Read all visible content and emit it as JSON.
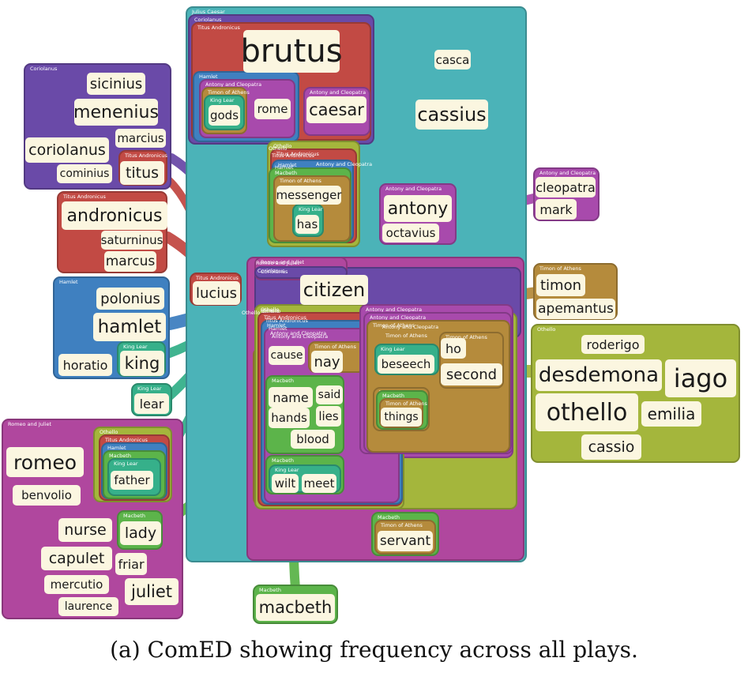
{
  "caption": "(a) ComED showing frequency across all plays.",
  "colors": {
    "julius_caesar": "#4bb3b8",
    "coriolanus": "#6a4aa8",
    "titus_andronicus": "#c24a44",
    "antony_and_cleopatra": "#a84aac",
    "romeo_and_juliet": "#b0479e",
    "hamlet": "#3f80c0",
    "king_lear": "#36b08a",
    "timon_of_athens": "#b58b3c",
    "macbeth": "#5cb44a",
    "othello": "#a4b63c",
    "word_fill": "#fbf6e0"
  },
  "groups": [
    {
      "id": "julius_caesar",
      "label": "Julius Caesar",
      "color": "#4bb3b8"
    },
    {
      "id": "rj_big",
      "label": "",
      "color": "#b0479e"
    },
    {
      "id": "cor_big",
      "label": "",
      "color": "#6a4aa8"
    },
    {
      "id": "oth_big",
      "label": "",
      "color": "#a4b63c"
    },
    {
      "id": "ac_big",
      "label": "Antony and Cleopatra",
      "color": "#a84aac"
    },
    {
      "id": "timon_mid",
      "label": "Timon of Athens",
      "color": "#b58b3c"
    },
    {
      "id": "coriolanus_jc",
      "label": "Coriolanus",
      "color": "#6a4aa8"
    },
    {
      "id": "titus_jc",
      "label": "Titus Andronicus",
      "color": "#c24a44"
    },
    {
      "id": "hamlet_jc",
      "label": "Hamlet",
      "color": "#3f80c0"
    },
    {
      "id": "ac_jc",
      "label": "Antony and Cleopatra",
      "color": "#a84aac"
    },
    {
      "id": "timon_jc",
      "label": "Timon of Athens",
      "color": "#b58b3c"
    },
    {
      "id": "lear_jc",
      "label": "King Lear",
      "color": "#36b08a"
    },
    {
      "id": "ac_caesar",
      "label": "Antony and Cleopatra",
      "color": "#a84aac"
    },
    {
      "id": "oth_m",
      "label": "Othello",
      "color": "#a4b63c"
    },
    {
      "id": "titus_m",
      "label": "Titus Andronicus",
      "color": "#c24a44"
    },
    {
      "id": "hamlet_m",
      "label": "Hamlet",
      "color": "#3f80c0"
    },
    {
      "id": "macbeth_m",
      "label": "Macbeth",
      "color": "#5cb44a"
    },
    {
      "id": "timon_m",
      "label": "Timon of Athens",
      "color": "#b58b3c"
    },
    {
      "id": "lear_has",
      "label": "King Lear",
      "color": "#36b08a"
    },
    {
      "id": "ac_antony",
      "label": "Antony and Cleopatra",
      "color": "#a84aac"
    },
    {
      "id": "coriolanus",
      "label": "Coriolanus",
      "color": "#6a4aa8"
    },
    {
      "id": "titus",
      "label": "Titus Andronicus",
      "color": "#c24a44"
    },
    {
      "id": "titus_andronicus",
      "label": "Titus Andronicus",
      "color": "#c24a44"
    },
    {
      "id": "hamlet",
      "label": "Hamlet",
      "color": "#3f80c0"
    },
    {
      "id": "lear_king",
      "label": "King Lear",
      "color": "#36b08a"
    },
    {
      "id": "lear_lear",
      "label": "King Lear",
      "color": "#36b08a"
    },
    {
      "id": "rj_cor",
      "label": "Romeo and Juliet",
      "color": "#b0479e"
    },
    {
      "id": "cor_small",
      "label": "Coriolanus",
      "color": "#6a4aa8"
    },
    {
      "id": "titus_lucius",
      "label": "Titus Andronicus",
      "color": "#c24a44"
    },
    {
      "id": "ac_cleopatra",
      "label": "Antony and Cleopatra",
      "color": "#a84aac"
    },
    {
      "id": "timon_timon",
      "label": "Timon of Athens",
      "color": "#b58b3c"
    },
    {
      "id": "othello",
      "label": "Othello",
      "color": "#a4b63c"
    },
    {
      "id": "romeo_and_juliet",
      "label": "Romeo and Juliet",
      "color": "#b0479e"
    },
    {
      "id": "oth_rj",
      "label": "Othello",
      "color": "#a4b63c"
    },
    {
      "id": "titus_rj",
      "label": "Titus Andronicus",
      "color": "#c24a44"
    },
    {
      "id": "hamlet_rj",
      "label": "Hamlet",
      "color": "#3f80c0"
    },
    {
      "id": "macbeth_rj",
      "label": "Macbeth",
      "color": "#5cb44a"
    },
    {
      "id": "lear_father",
      "label": "King Lear",
      "color": "#36b08a"
    },
    {
      "id": "macbeth_lady",
      "label": "Macbeth",
      "color": "#5cb44a"
    },
    {
      "id": "macbeth_macbeth",
      "label": "Macbeth",
      "color": "#5cb44a"
    },
    {
      "id": "oth_center",
      "label": "Othello",
      "color": "#a4b63c"
    },
    {
      "id": "titus_center",
      "label": "Titus Andronicus",
      "color": "#c24a44"
    },
    {
      "id": "hamlet_center",
      "label": "Hamlet",
      "color": "#3f80c0"
    },
    {
      "id": "ac_center",
      "label": "Antony and Cleopatra",
      "color": "#a84aac"
    },
    {
      "id": "timon_nay",
      "label": "Timon of Athens",
      "color": "#b58b3c"
    },
    {
      "id": "macbeth_name",
      "label": "Macbeth",
      "color": "#5cb44a"
    },
    {
      "id": "macbeth_wilt",
      "label": "Macbeth",
      "color": "#5cb44a"
    },
    {
      "id": "lear_wilt",
      "label": "King Lear",
      "color": "#36b08a"
    },
    {
      "id": "ac_right",
      "label": "Antony and Cleopatra",
      "color": "#a84aac"
    },
    {
      "id": "ac_right2",
      "label": "Antony and Cleopatra",
      "color": "#a84aac"
    },
    {
      "id": "timon_right",
      "label": "Timon of Athens",
      "color": "#b58b3c"
    },
    {
      "id": "timon_ho",
      "label": "Timon of Athens",
      "color": "#b58b3c"
    },
    {
      "id": "lear_beseech",
      "label": "King Lear",
      "color": "#36b08a"
    },
    {
      "id": "timon_things_outer",
      "label": "Timon of Athens",
      "color": "#b58b3c"
    },
    {
      "id": "macbeth_things",
      "label": "Macbeth",
      "color": "#5cb44a"
    },
    {
      "id": "timon_things",
      "label": "Timon of Athens",
      "color": "#b58b3c"
    },
    {
      "id": "macbeth_servant",
      "label": "Macbeth",
      "color": "#5cb44a"
    },
    {
      "id": "timon_servant",
      "label": "Timon of Athens",
      "color": "#b58b3c"
    }
  ],
  "words": [
    {
      "text": "brutus",
      "group": "titus_jc"
    },
    {
      "text": "casca",
      "group": "julius_caesar"
    },
    {
      "text": "cassius",
      "group": "julius_caesar"
    },
    {
      "text": "gods",
      "group": "lear_jc"
    },
    {
      "text": "rome",
      "group": "ac_jc"
    },
    {
      "text": "caesar",
      "group": "ac_caesar"
    },
    {
      "text": "messenger",
      "group": "timon_m"
    },
    {
      "text": "has",
      "group": "lear_has"
    },
    {
      "text": "antony",
      "group": "ac_antony"
    },
    {
      "text": "octavius",
      "group": "ac_antony"
    },
    {
      "text": "sicinius",
      "group": "coriolanus"
    },
    {
      "text": "menenius",
      "group": "coriolanus"
    },
    {
      "text": "marcius",
      "group": "coriolanus"
    },
    {
      "text": "coriolanus",
      "group": "coriolanus"
    },
    {
      "text": "cominius",
      "group": "coriolanus"
    },
    {
      "text": "titus",
      "group": "titus"
    },
    {
      "text": "andronicus",
      "group": "titus_andronicus"
    },
    {
      "text": "saturninus",
      "group": "titus_andronicus"
    },
    {
      "text": "marcus",
      "group": "titus_andronicus"
    },
    {
      "text": "cleopatra",
      "group": "ac_cleopatra"
    },
    {
      "text": "mark",
      "group": "ac_cleopatra"
    },
    {
      "text": "lucius",
      "group": "titus_lucius"
    },
    {
      "text": "citizen",
      "group": "cor_small"
    },
    {
      "text": "timon",
      "group": "timon_timon"
    },
    {
      "text": "apemantus",
      "group": "timon_timon"
    },
    {
      "text": "polonius",
      "group": "hamlet"
    },
    {
      "text": "hamlet",
      "group": "hamlet"
    },
    {
      "text": "horatio",
      "group": "hamlet"
    },
    {
      "text": "king",
      "group": "lear_king"
    },
    {
      "text": "lear",
      "group": "lear_lear"
    },
    {
      "text": "cause",
      "group": "hamlet_center"
    },
    {
      "text": "nay",
      "group": "timon_nay"
    },
    {
      "text": "beseech",
      "group": "lear_beseech"
    },
    {
      "text": "ho",
      "group": "timon_ho"
    },
    {
      "text": "second",
      "group": "timon_ho"
    },
    {
      "text": "roderigo",
      "group": "othello"
    },
    {
      "text": "desdemona",
      "group": "othello"
    },
    {
      "text": "iago",
      "group": "othello"
    },
    {
      "text": "othello",
      "group": "othello"
    },
    {
      "text": "emilia",
      "group": "othello"
    },
    {
      "text": "cassio",
      "group": "othello"
    },
    {
      "text": "name",
      "group": "macbeth_name"
    },
    {
      "text": "said",
      "group": "macbeth_name"
    },
    {
      "text": "hands",
      "group": "macbeth_name"
    },
    {
      "text": "lies",
      "group": "macbeth_name"
    },
    {
      "text": "blood",
      "group": "macbeth_name"
    },
    {
      "text": "things",
      "group": "timon_things"
    },
    {
      "text": "romeo",
      "group": "romeo_and_juliet"
    },
    {
      "text": "benvolio",
      "group": "romeo_and_juliet"
    },
    {
      "text": "father",
      "group": "lear_father"
    },
    {
      "text": "wilt",
      "group": "lear_wilt"
    },
    {
      "text": "meet",
      "group": "lear_wilt"
    },
    {
      "text": "nurse",
      "group": "romeo_and_juliet"
    },
    {
      "text": "lady",
      "group": "macbeth_lady"
    },
    {
      "text": "capulet",
      "group": "romeo_and_juliet"
    },
    {
      "text": "friar",
      "group": "romeo_and_juliet"
    },
    {
      "text": "mercutio",
      "group": "romeo_and_juliet"
    },
    {
      "text": "juliet",
      "group": "romeo_and_juliet"
    },
    {
      "text": "laurence",
      "group": "romeo_and_juliet"
    },
    {
      "text": "servant",
      "group": "timon_servant"
    },
    {
      "text": "macbeth",
      "group": "macbeth_macbeth"
    }
  ],
  "float_labels": [
    {
      "id": "fl_oth1",
      "text": "Othello"
    },
    {
      "id": "fl_titus1",
      "text": "Titus Andronicus"
    },
    {
      "id": "fl_ham1",
      "text": "Hamlet"
    },
    {
      "id": "fl_ac1",
      "text": "Antony and Cleopatra"
    },
    {
      "id": "fl_rj1",
      "text": "Romeo and Juliet"
    },
    {
      "id": "fl_cor1",
      "text": "Coriolanus"
    },
    {
      "id": "fl_oth2",
      "text": "Othello"
    },
    {
      "id": "fl_ac2",
      "text": "Antony and Cleopatra"
    },
    {
      "id": "fl_oth3",
      "text": "Othello"
    },
    {
      "id": "fl_oth4",
      "text": "Othello"
    },
    {
      "id": "fl_titus2",
      "text": "Titus Andronicus"
    },
    {
      "id": "fl_ham2",
      "text": "Hamlet"
    },
    {
      "id": "fl_ac3",
      "text": "Antony and Cleopatra"
    },
    {
      "id": "fl_timon1",
      "text": "Timon of Athens"
    }
  ]
}
